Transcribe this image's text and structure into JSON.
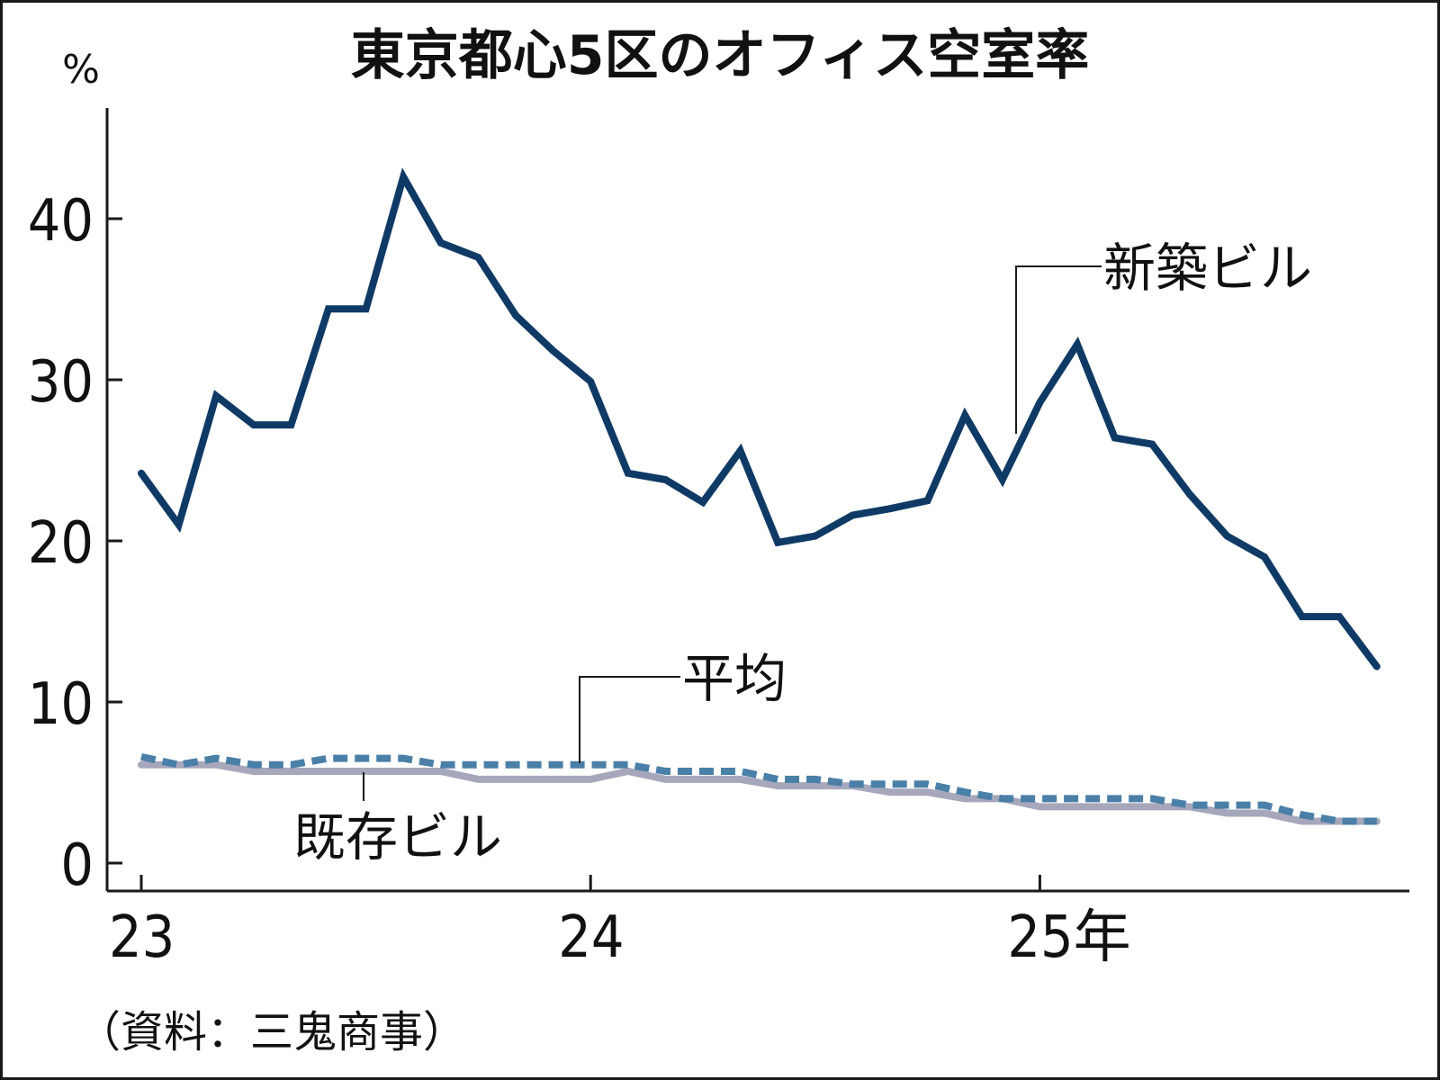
{
  "chart_data": {
    "type": "line",
    "title": "東京都心5区のオフィス空室率",
    "ylabel": "%",
    "ylim": [
      0,
      45
    ],
    "yticks": [
      0,
      10,
      20,
      30,
      40
    ],
    "xticks": [
      {
        "label": "23",
        "index": 0
      },
      {
        "label": "24",
        "index": 12
      },
      {
        "label": "25年",
        "index": 24
      }
    ],
    "xlim": [
      0,
      34.5
    ],
    "grid": false,
    "legend": "inline labels",
    "source": "（資料：三鬼商事）",
    "series": [
      {
        "name": "新築ビル",
        "color": "#0f3a66",
        "style": "solid",
        "values": [
          24.2,
          21.0,
          29.0,
          27.2,
          27.2,
          34.4,
          34.4,
          42.6,
          38.5,
          37.6,
          34.0,
          31.8,
          29.9,
          24.2,
          23.8,
          22.4,
          25.6,
          19.9,
          20.3,
          21.6,
          22.0,
          22.5,
          27.8,
          23.8,
          28.6,
          32.2,
          26.4,
          26.0,
          22.9,
          20.3,
          19.0,
          15.3,
          15.3,
          12.2
        ]
      },
      {
        "name": "平均",
        "color": "#4a7fa7",
        "style": "dashed",
        "values": [
          6.6,
          6.1,
          6.5,
          6.1,
          6.1,
          6.5,
          6.5,
          6.5,
          6.1,
          6.1,
          6.1,
          6.1,
          6.1,
          6.1,
          5.7,
          5.7,
          5.7,
          5.2,
          5.2,
          4.9,
          4.9,
          4.9,
          4.4,
          4.0,
          4.0,
          4.0,
          4.0,
          4.0,
          3.6,
          3.6,
          3.6,
          3.0,
          2.6,
          2.6
        ]
      },
      {
        "name": "既存ビル",
        "color": "#a7a7bc",
        "style": "solid",
        "values": [
          6.1,
          6.1,
          6.1,
          5.7,
          5.7,
          5.7,
          5.7,
          5.7,
          5.7,
          5.2,
          5.2,
          5.2,
          5.2,
          5.7,
          5.2,
          5.2,
          5.2,
          4.8,
          4.8,
          4.8,
          4.4,
          4.4,
          4.0,
          4.0,
          3.5,
          3.5,
          3.5,
          3.5,
          3.5,
          3.1,
          3.1,
          2.6,
          2.6,
          2.6
        ]
      }
    ]
  }
}
